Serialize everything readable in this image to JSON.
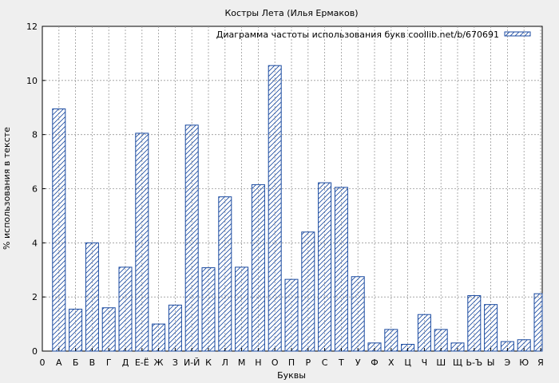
{
  "chart_data": {
    "type": "bar",
    "title": "Костры Лета (Илья Ермаков)",
    "xlabel": "Буквы",
    "ylabel": "% использования в тексте",
    "legend_label": "Диаграмма частоты использования букв coollib.net/b/670691",
    "legend_position": "top-right",
    "grid": true,
    "ylim": [
      0,
      12
    ],
    "y_ticks": [
      "0",
      "2",
      "4",
      "6",
      "8",
      "10",
      "12"
    ],
    "x_start_label": "0",
    "categories": [
      "А",
      "Б",
      "В",
      "Г",
      "Д",
      "Е-Ё",
      "Ж",
      "З",
      "И-Й",
      "К",
      "Л",
      "М",
      "Н",
      "О",
      "П",
      "Р",
      "С",
      "Т",
      "У",
      "Ф",
      "Х",
      "Ц",
      "Ч",
      "Ш",
      "Щ",
      "Ь-Ъ",
      "Ы",
      "Э",
      "Ю",
      "Я"
    ],
    "values": [
      8.95,
      1.55,
      4.0,
      1.6,
      3.1,
      8.05,
      1.0,
      1.7,
      8.35,
      3.08,
      5.7,
      3.1,
      6.15,
      10.55,
      2.65,
      4.4,
      6.22,
      6.05,
      2.75,
      0.3,
      0.8,
      0.25,
      1.35,
      0.8,
      0.3,
      2.05,
      1.72,
      0.35,
      0.42,
      2.12
    ],
    "bar_color": "#1a4aa0",
    "background_color": "#efefef",
    "plot_background_color": "#ffffff"
  }
}
